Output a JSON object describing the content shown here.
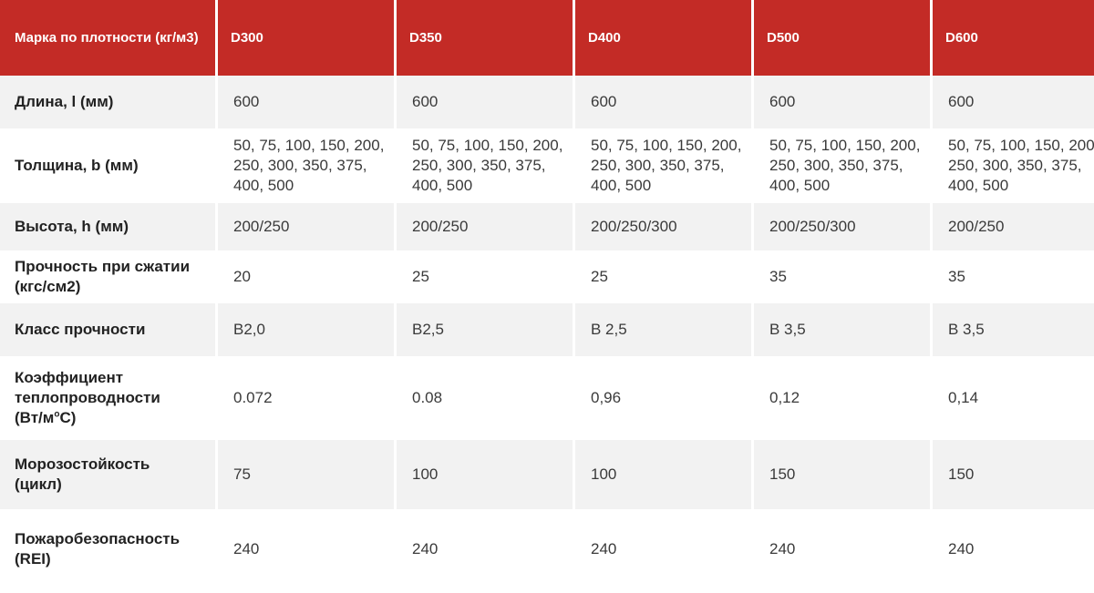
{
  "table": {
    "header": {
      "corner": "Марка по плотности (кг/м3)",
      "columns": [
        "D300",
        "D350",
        "D400",
        "D500",
        "D600"
      ]
    },
    "rows": [
      {
        "label": "Длина, l (мм)",
        "values": [
          "600",
          "600",
          "600",
          "600",
          "600"
        ]
      },
      {
        "label": "Толщина, b (мм)",
        "values": [
          "50, 75, 100, 150, 200, 250, 300, 350, 375, 400, 500",
          "50, 75, 100, 150, 200, 250, 300, 350, 375, 400, 500",
          "50, 75, 100, 150, 200, 250, 300, 350, 375, 400, 500",
          "50, 75, 100, 150, 200, 250, 300, 350, 375, 400, 500",
          "50, 75, 100, 150, 200, 250, 300, 350, 375, 400, 500"
        ]
      },
      {
        "label": "Высота, h (мм)",
        "values": [
          "200/250",
          "200/250",
          "200/250/300",
          "200/250/300",
          "200/250"
        ]
      },
      {
        "label": "Прочность при сжатии (кгс/см2)",
        "values": [
          "20",
          "25",
          "25",
          "35",
          "35"
        ]
      },
      {
        "label": "Класс прочности",
        "values": [
          "B2,0",
          "B2,5",
          "В 2,5",
          "В 3,5",
          "В 3,5"
        ]
      },
      {
        "label": "Коэффициент теплопроводности",
        "label_unit": "(Вт/м",
        "label_sup": "o",
        "label_tail": "С)",
        "values": [
          "0.072",
          "0.08",
          "0,96",
          "0,12",
          "0,14"
        ]
      },
      {
        "label": "Морозостойкость (цикл)",
        "values": [
          "75",
          "100",
          "100",
          "150",
          "150"
        ]
      },
      {
        "label": "Пожаробезопасность (REI)",
        "values": [
          "240",
          "240",
          "240",
          "240",
          "240"
        ]
      }
    ]
  }
}
